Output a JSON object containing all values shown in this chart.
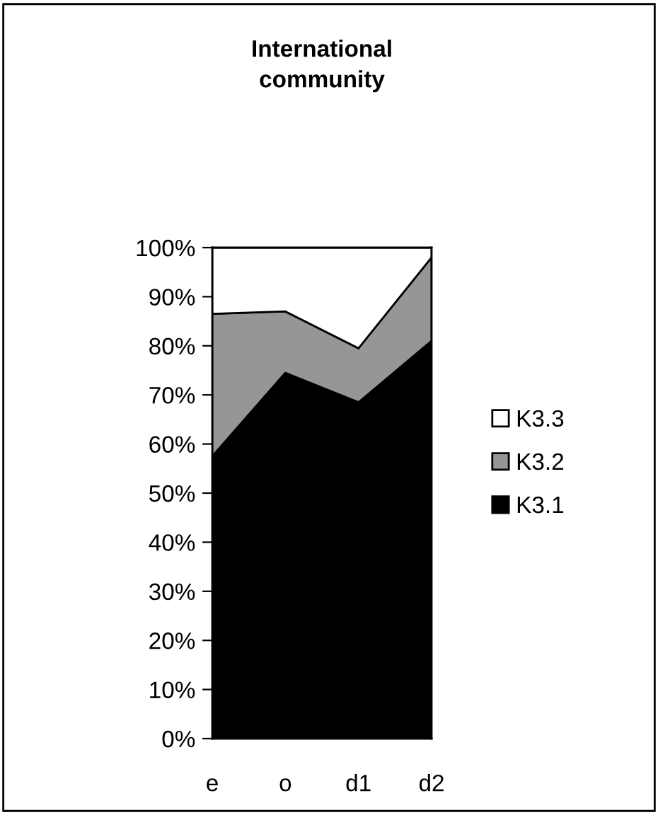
{
  "chart_data": {
    "type": "area",
    "title": "International\ncommunity",
    "categories": [
      "e",
      "o",
      "d1",
      "d2"
    ],
    "stacked": true,
    "series": [
      {
        "name": "K3.1",
        "color": "#000000",
        "values": [
          57.5,
          74.5,
          68.5,
          81
        ]
      },
      {
        "name": "K3.2",
        "color": "#969696",
        "values": [
          29,
          12.5,
          11,
          17
        ]
      },
      {
        "name": "K3.3",
        "color": "#ffffff",
        "values": [
          13.5,
          13,
          20.5,
          2
        ]
      }
    ],
    "ylim": [
      0,
      100
    ],
    "yticks": [
      {
        "value": 0,
        "label": "0%"
      },
      {
        "value": 10,
        "label": "10%"
      },
      {
        "value": 20,
        "label": "20%"
      },
      {
        "value": 30,
        "label": "30%"
      },
      {
        "value": 40,
        "label": "40%"
      },
      {
        "value": 50,
        "label": "50%"
      },
      {
        "value": 60,
        "label": "60%"
      },
      {
        "value": 70,
        "label": "70%"
      },
      {
        "value": 80,
        "label": "80%"
      },
      {
        "value": 90,
        "label": "90%"
      },
      {
        "value": 100,
        "label": "100%"
      }
    ],
    "grid": false,
    "legend": "right"
  }
}
